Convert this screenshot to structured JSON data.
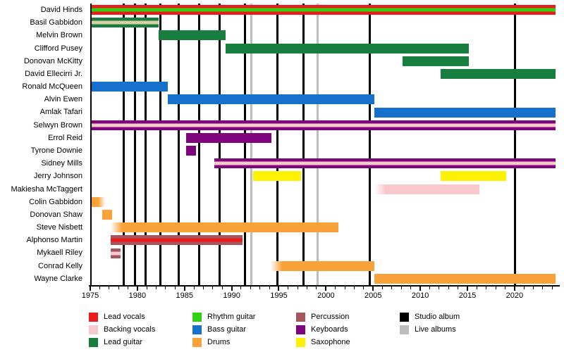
{
  "chart_data": {
    "type": "timeline",
    "x_domain": [
      1975,
      2024.2
    ],
    "x_ticks": [
      1975,
      1980,
      1985,
      1990,
      1995,
      2000,
      2005,
      2010,
      2015,
      2020
    ],
    "x_minor_tick_start": 1975,
    "x_minor_tick_end": 2024,
    "colors": {
      "lead_vocals": "#ec1b1b",
      "backing_vocals": "#f8c8cd",
      "backing_vocals_tan": "#d8cfa2",
      "lead_guitar": "#177e40",
      "rhythm_guitar": "#2dd313",
      "bass_guitar": "#1571cb",
      "drums": "#f9a23a",
      "percussion": "#a4565c",
      "keyboards": "#7e057e",
      "saxophone": "#fef102",
      "studio_album": "#000000",
      "live_albums": "#bdbdbd"
    },
    "members": [
      {
        "name": "David Hinds",
        "bars": [
          {
            "start": 1975,
            "end": 2024.2,
            "color": "lead_vocals",
            "stripe": "rhythm_guitar"
          }
        ]
      },
      {
        "name": "Basil Gabbidon",
        "bars": [
          {
            "start": 1975,
            "end": 1982.1,
            "color": "lead_guitar",
            "stripe": "backing_vocals_tan"
          }
        ]
      },
      {
        "name": "Melvin Brown",
        "bars": [
          {
            "start": 1982.1,
            "end": 1989.2,
            "color": "lead_guitar"
          }
        ]
      },
      {
        "name": "Clifford Pusey",
        "bars": [
          {
            "start": 1989.2,
            "end": 2015,
            "color": "lead_guitar"
          }
        ]
      },
      {
        "name": "Donovan McKitty",
        "bars": [
          {
            "start": 2008,
            "end": 2015,
            "color": "lead_guitar"
          }
        ]
      },
      {
        "name": "David Ellecirri Jr.",
        "bars": [
          {
            "start": 2012,
            "end": 2024.2,
            "color": "lead_guitar"
          }
        ]
      },
      {
        "name": "Ronald McQueen",
        "bars": [
          {
            "start": 1975,
            "end": 1983.1,
            "color": "bass_guitar"
          }
        ]
      },
      {
        "name": "Alvin Ewen",
        "bars": [
          {
            "start": 1983.1,
            "end": 2005,
            "color": "bass_guitar"
          }
        ]
      },
      {
        "name": "Amlak Tafari",
        "bars": [
          {
            "start": 2005,
            "end": 2024.2,
            "color": "bass_guitar"
          }
        ]
      },
      {
        "name": "Selwyn Brown",
        "bars": [
          {
            "start": 1975,
            "end": 2024.2,
            "color": "keyboards",
            "stripe": "backing_vocals"
          }
        ]
      },
      {
        "name": "Errol Reid",
        "bars": [
          {
            "start": 1985,
            "end": 1994.1,
            "color": "keyboards"
          }
        ]
      },
      {
        "name": "Tyrone Downie",
        "bars": [
          {
            "start": 1985,
            "end": 1986.1,
            "color": "keyboards"
          }
        ]
      },
      {
        "name": "Sidney Mills",
        "bars": [
          {
            "start": 1988,
            "end": 2024.2,
            "color": "keyboards",
            "stripe": "backing_vocals"
          }
        ]
      },
      {
        "name": "Jerry Johnson",
        "bars": [
          {
            "start": 1992.1,
            "end": 1997.2,
            "color": "saxophone"
          },
          {
            "start": 2012,
            "end": 2019,
            "color": "saxophone"
          }
        ]
      },
      {
        "name": "Makiesha McTaggert",
        "bars": [
          {
            "start": 2005,
            "end": 2016.1,
            "color": "backing_vocals",
            "fade": "left"
          }
        ]
      },
      {
        "name": "Colin Gabbidon",
        "bars": [
          {
            "start": 1975,
            "end": 1976.4,
            "color": "drums",
            "fade": "right"
          }
        ]
      },
      {
        "name": "Donovan Shaw",
        "bars": [
          {
            "start": 1976.1,
            "end": 1977.2,
            "color": "drums"
          }
        ]
      },
      {
        "name": "Steve Nisbett",
        "bars": [
          {
            "start": 1977,
            "end": 2001.2,
            "color": "drums",
            "fade": "left"
          }
        ]
      },
      {
        "name": "Alphonso Martin",
        "bars": [
          {
            "start": 1977,
            "end": 1991,
            "color": "percussion",
            "stripe": "lead_vocals"
          }
        ]
      },
      {
        "name": "Mykaell Riley",
        "bars": [
          {
            "start": 1977,
            "end": 1978.1,
            "color": "percussion",
            "stripe": "backing_vocals"
          }
        ]
      },
      {
        "name": "Conrad Kelly",
        "bars": [
          {
            "start": 1994,
            "end": 2005,
            "color": "drums",
            "fade": "left"
          }
        ]
      },
      {
        "name": "Wayne Clarke",
        "bars": [
          {
            "start": 2005,
            "end": 2024.2,
            "color": "drums"
          }
        ]
      }
    ],
    "events": {
      "studio_albums": [
        1978.4,
        1979.6,
        1980.7,
        1982.3,
        1984.2,
        1986.4,
        1988.6,
        1991.3,
        1994.7,
        1997.5,
        2004.5,
        2019.9
      ],
      "live_albums": [
        1991.9,
        1999
      ]
    },
    "legend": {
      "columns": [
        [
          {
            "label": "Lead vocals",
            "color": "lead_vocals"
          },
          {
            "label": "Backing vocals",
            "color": "backing_vocals"
          },
          {
            "label": "Lead guitar",
            "color": "lead_guitar"
          }
        ],
        [
          {
            "label": "Rhythm guitar",
            "color": "rhythm_guitar"
          },
          {
            "label": "Bass guitar",
            "color": "bass_guitar"
          },
          {
            "label": "Drums",
            "color": "drums"
          }
        ],
        [
          {
            "label": "Percussion",
            "color": "percussion"
          },
          {
            "label": "Keyboards",
            "color": "keyboards"
          },
          {
            "label": "Saxophone",
            "color": "saxophone"
          }
        ],
        [
          {
            "label": "Studio album",
            "color": "studio_album"
          },
          {
            "label": "Live albums",
            "color": "live_albums"
          }
        ]
      ]
    }
  }
}
